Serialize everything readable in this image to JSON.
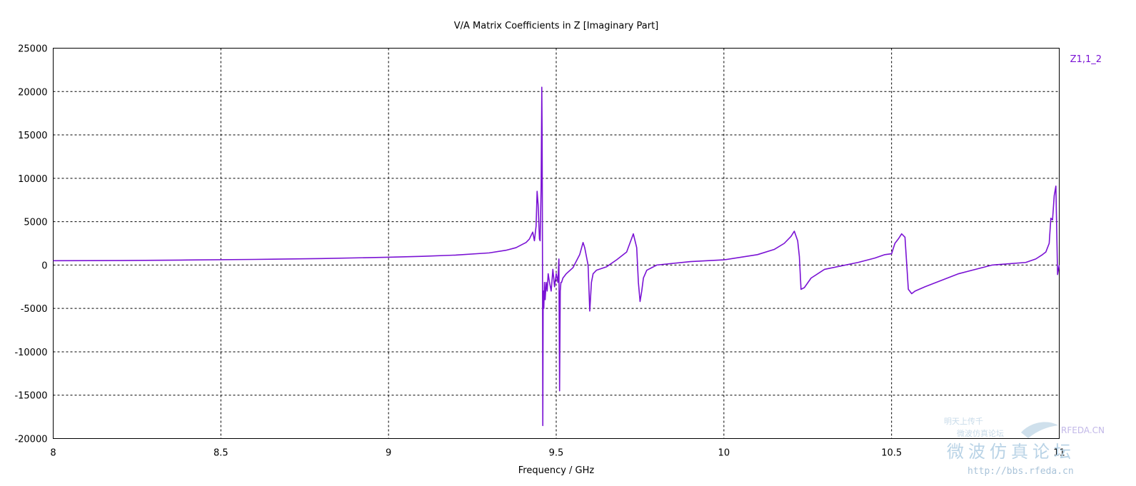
{
  "chart_data": {
    "type": "line",
    "title": "V/A Matrix Coefficients in Z [Imaginary Part]",
    "xlabel": "Frequency / GHz",
    "ylabel": "",
    "xlim": [
      8,
      11
    ],
    "ylim": [
      -20000,
      25000
    ],
    "x_ticks": [
      "8",
      "8.5",
      "9",
      "9.5",
      "10",
      "10.5",
      "11"
    ],
    "y_ticks": [
      "25000",
      "20000",
      "15000",
      "10000",
      "5000",
      "0",
      "-5000",
      "-10000",
      "-15000",
      "-20000"
    ],
    "grid": true,
    "legend_position": "top-right",
    "series": [
      {
        "name": "Z1,1_2",
        "color": "#7a12d4",
        "x": [
          8.0,
          8.2,
          8.4,
          8.6,
          8.8,
          9.0,
          9.1,
          9.2,
          9.3,
          9.35,
          9.38,
          9.4,
          9.41,
          9.42,
          9.43,
          9.435,
          9.44,
          9.443,
          9.446,
          9.45,
          9.452,
          9.455,
          9.457,
          9.458,
          9.459,
          9.46,
          9.461,
          9.462,
          9.463,
          9.465,
          9.467,
          9.47,
          9.473,
          9.476,
          9.48,
          9.485,
          9.49,
          9.495,
          9.5,
          9.505,
          9.508,
          9.51,
          9.512,
          9.514,
          9.516,
          9.52,
          9.53,
          9.55,
          9.57,
          9.58,
          9.585,
          9.59,
          9.595,
          9.6,
          9.605,
          9.61,
          9.62,
          9.65,
          9.68,
          9.71,
          9.73,
          9.74,
          9.745,
          9.75,
          9.755,
          9.76,
          9.77,
          9.8,
          9.9,
          10.0,
          10.1,
          10.15,
          10.18,
          10.2,
          10.21,
          10.22,
          10.225,
          10.23,
          10.24,
          10.26,
          10.3,
          10.4,
          10.45,
          10.48,
          10.5,
          10.51,
          10.52,
          10.53,
          10.54,
          10.55,
          10.56,
          10.57,
          10.6,
          10.7,
          10.8,
          10.9,
          10.93,
          10.95,
          10.96,
          10.97,
          10.975,
          10.98,
          10.985,
          10.99,
          10.995,
          11.0
        ],
        "values": [
          500,
          520,
          580,
          650,
          750,
          900,
          1000,
          1150,
          1400,
          1700,
          2000,
          2400,
          2600,
          3000,
          3800,
          2800,
          4500,
          8500,
          7000,
          3000,
          2800,
          9000,
          20500,
          15000,
          2000,
          -18500,
          -5000,
          -3000,
          -5000,
          -2000,
          -4000,
          -2000,
          -3000,
          -1000,
          -2000,
          -3000,
          -500,
          -2500,
          -1000,
          -2000,
          700,
          -14500,
          -3000,
          -2000,
          -2000,
          -1500,
          -1000,
          -300,
          1200,
          2600,
          2000,
          1000,
          0,
          -5300,
          -2000,
          -1000,
          -600,
          -200,
          600,
          1500,
          3600,
          2000,
          -2000,
          -4200,
          -3000,
          -1500,
          -600,
          0,
          400,
          600,
          1200,
          1800,
          2500,
          3300,
          3900,
          2800,
          1000,
          -2800,
          -2600,
          -1500,
          -500,
          300,
          800,
          1200,
          1300,
          2500,
          3000,
          3600,
          3200,
          -2800,
          -3300,
          -3000,
          -2500,
          -1000,
          0,
          300,
          700,
          1200,
          1500,
          2500,
          5400,
          5200,
          8000,
          9100,
          -1100,
          0
        ]
      }
    ]
  },
  "watermark": {
    "site_cn": "微波仿真论坛",
    "url": "http://bbs.rfeda.cn",
    "brand": "RFEDA.CN",
    "slogan_top": "明天上传千",
    "slogan_bottom": "微波仿真论坛"
  }
}
